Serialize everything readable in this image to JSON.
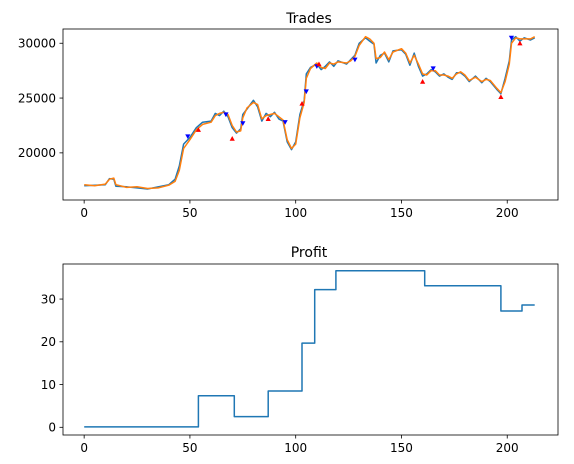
{
  "chart_data": [
    {
      "type": "line",
      "title": "Trades",
      "xlabel": "",
      "ylabel": "",
      "xlim": [
        -10,
        224
      ],
      "ylim": [
        15700,
        31300
      ],
      "xticks": [
        0,
        50,
        100,
        150,
        200
      ],
      "yticks": [
        20000,
        25000,
        30000
      ],
      "grid": false,
      "series": [
        {
          "color": "#1f77b4",
          "points": [
            [
              0,
              17000
            ],
            [
              5,
              17050
            ],
            [
              10,
              17100
            ],
            [
              12,
              17650
            ],
            [
              14,
              17600
            ],
            [
              15,
              16950
            ],
            [
              20,
              16900
            ],
            [
              25,
              16800
            ],
            [
              30,
              16700
            ],
            [
              35,
              16900
            ],
            [
              40,
              17100
            ],
            [
              43,
              17600
            ],
            [
              45,
              18800
            ],
            [
              47,
              20800
            ],
            [
              50,
              21400
            ],
            [
              53,
              22300
            ],
            [
              56,
              22800
            ],
            [
              60,
              22900
            ],
            [
              62,
              23600
            ],
            [
              64,
              23400
            ],
            [
              66,
              23800
            ],
            [
              68,
              23300
            ],
            [
              70,
              22300
            ],
            [
              72,
              21800
            ],
            [
              74,
              22200
            ],
            [
              75,
              23500
            ],
            [
              77,
              24000
            ],
            [
              80,
              24800
            ],
            [
              82,
              24200
            ],
            [
              84,
              22900
            ],
            [
              86,
              23600
            ],
            [
              88,
              23300
            ],
            [
              90,
              23700
            ],
            [
              92,
              23100
            ],
            [
              94,
              22900
            ],
            [
              96,
              21000
            ],
            [
              98,
              20300
            ],
            [
              100,
              21000
            ],
            [
              102,
              23500
            ],
            [
              104,
              24800
            ],
            [
              105,
              27200
            ],
            [
              107,
              27800
            ],
            [
              110,
              28100
            ],
            [
              112,
              27600
            ],
            [
              114,
              27900
            ],
            [
              116,
              28300
            ],
            [
              118,
              27900
            ],
            [
              120,
              28400
            ],
            [
              124,
              28100
            ],
            [
              126,
              28500
            ],
            [
              128,
              28900
            ],
            [
              130,
              30000
            ],
            [
              133,
              30500
            ],
            [
              135,
              30200
            ],
            [
              137,
              29900
            ],
            [
              138,
              28200
            ],
            [
              140,
              28900
            ],
            [
              142,
              29100
            ],
            [
              144,
              28300
            ],
            [
              146,
              29300
            ],
            [
              150,
              29400
            ],
            [
              152,
              29000
            ],
            [
              154,
              28000
            ],
            [
              156,
              29100
            ],
            [
              158,
              27900
            ],
            [
              160,
              27000
            ],
            [
              162,
              27200
            ],
            [
              164,
              27600
            ],
            [
              166,
              27400
            ],
            [
              168,
              27000
            ],
            [
              170,
              27200
            ],
            [
              172,
              26900
            ],
            [
              174,
              26700
            ],
            [
              176,
              27300
            ],
            [
              178,
              27300
            ],
            [
              180,
              27000
            ],
            [
              182,
              26500
            ],
            [
              185,
              27000
            ],
            [
              188,
              26400
            ],
            [
              190,
              26800
            ],
            [
              192,
              26500
            ],
            [
              195,
              25800
            ],
            [
              197,
              25400
            ],
            [
              199,
              26800
            ],
            [
              201,
              28400
            ],
            [
              202,
              30300
            ],
            [
              204,
              30600
            ],
            [
              206,
              30200
            ],
            [
              208,
              30500
            ],
            [
              211,
              30300
            ],
            [
              213,
              30500
            ]
          ]
        },
        {
          "color": "#ff7f0e",
          "points": [
            [
              0,
              17100
            ],
            [
              5,
              17000
            ],
            [
              10,
              17150
            ],
            [
              12,
              17600
            ],
            [
              14,
              17700
            ],
            [
              15,
              17100
            ],
            [
              20,
              16850
            ],
            [
              25,
              16900
            ],
            [
              30,
              16750
            ],
            [
              35,
              16800
            ],
            [
              40,
              17050
            ],
            [
              43,
              17400
            ],
            [
              45,
              18400
            ],
            [
              47,
              20400
            ],
            [
              50,
              21200
            ],
            [
              53,
              22100
            ],
            [
              56,
              22600
            ],
            [
              60,
              22800
            ],
            [
              62,
              23400
            ],
            [
              64,
              23600
            ],
            [
              66,
              23700
            ],
            [
              68,
              23500
            ],
            [
              70,
              22500
            ],
            [
              72,
              21900
            ],
            [
              74,
              22000
            ],
            [
              75,
              23200
            ],
            [
              77,
              24100
            ],
            [
              80,
              24600
            ],
            [
              82,
              24400
            ],
            [
              84,
              23100
            ],
            [
              86,
              23400
            ],
            [
              88,
              23500
            ],
            [
              90,
              23600
            ],
            [
              92,
              23300
            ],
            [
              94,
              23000
            ],
            [
              96,
              21200
            ],
            [
              98,
              20400
            ],
            [
              100,
              20800
            ],
            [
              102,
              23200
            ],
            [
              104,
              24600
            ],
            [
              105,
              26800
            ],
            [
              107,
              27700
            ],
            [
              110,
              28200
            ],
            [
              112,
              27800
            ],
            [
              114,
              27700
            ],
            [
              116,
              28200
            ],
            [
              118,
              28100
            ],
            [
              120,
              28300
            ],
            [
              124,
              28200
            ],
            [
              126,
              28400
            ],
            [
              128,
              28800
            ],
            [
              130,
              29800
            ],
            [
              133,
              30600
            ],
            [
              135,
              30400
            ],
            [
              137,
              30000
            ],
            [
              138,
              28600
            ],
            [
              140,
              28700
            ],
            [
              142,
              29200
            ],
            [
              144,
              28500
            ],
            [
              146,
              29200
            ],
            [
              150,
              29500
            ],
            [
              152,
              29100
            ],
            [
              154,
              28200
            ],
            [
              156,
              28900
            ],
            [
              158,
              28100
            ],
            [
              160,
              27200
            ],
            [
              162,
              27100
            ],
            [
              164,
              27500
            ],
            [
              166,
              27500
            ],
            [
              168,
              27100
            ],
            [
              170,
              27100
            ],
            [
              172,
              27000
            ],
            [
              174,
              26800
            ],
            [
              176,
              27200
            ],
            [
              178,
              27400
            ],
            [
              180,
              27100
            ],
            [
              182,
              26600
            ],
            [
              185,
              26900
            ],
            [
              188,
              26500
            ],
            [
              190,
              26700
            ],
            [
              192,
              26600
            ],
            [
              195,
              25900
            ],
            [
              197,
              25500
            ],
            [
              199,
              26500
            ],
            [
              201,
              28100
            ],
            [
              202,
              30000
            ],
            [
              204,
              30500
            ],
            [
              206,
              30400
            ],
            [
              208,
              30400
            ],
            [
              211,
              30400
            ],
            [
              213,
              30600
            ]
          ]
        }
      ],
      "markers": [
        {
          "kind": "sell",
          "shape": "triangle-down",
          "color": "#0000ff",
          "points": [
            [
              49,
              21500
            ],
            [
              67,
              23500
            ],
            [
              75,
              22700
            ],
            [
              95,
              22800
            ],
            [
              105,
              25600
            ],
            [
              110,
              27900
            ],
            [
              128,
              28500
            ],
            [
              165,
              27700
            ],
            [
              202,
              30500
            ]
          ]
        },
        {
          "kind": "buy",
          "shape": "triangle-up",
          "color": "#ff0000",
          "points": [
            [
              54,
              22100
            ],
            [
              70,
              21300
            ],
            [
              87,
              23100
            ],
            [
              103,
              24500
            ],
            [
              111,
              28100
            ],
            [
              160,
              26500
            ],
            [
              197,
              25100
            ],
            [
              206,
              30000
            ]
          ]
        }
      ]
    },
    {
      "type": "line",
      "title": "Profit",
      "xlabel": "",
      "ylabel": "",
      "xlim": [
        -10,
        224
      ],
      "ylim": [
        -1.8,
        38.2
      ],
      "xticks": [
        0,
        50,
        100,
        150,
        200
      ],
      "yticks": [
        0,
        10,
        20,
        30
      ],
      "grid": false,
      "step": true,
      "series": [
        {
          "color": "#1f77b4",
          "points": [
            [
              0,
              0.1
            ],
            [
              53,
              0.1
            ],
            [
              54,
              7.4
            ],
            [
              70,
              7.4
            ],
            [
              71,
              2.5
            ],
            [
              86,
              2.5
            ],
            [
              87,
              8.5
            ],
            [
              102,
              8.5
            ],
            [
              103,
              19.7
            ],
            [
              108,
              19.7
            ],
            [
              109,
              32.2
            ],
            [
              118,
              32.2
            ],
            [
              119,
              36.6
            ],
            [
              160,
              36.6
            ],
            [
              161,
              33.1
            ],
            [
              196,
              33.1
            ],
            [
              197,
              27.2
            ],
            [
              206,
              27.2
            ],
            [
              207,
              28.6
            ],
            [
              213,
              28.6
            ]
          ]
        }
      ]
    }
  ]
}
